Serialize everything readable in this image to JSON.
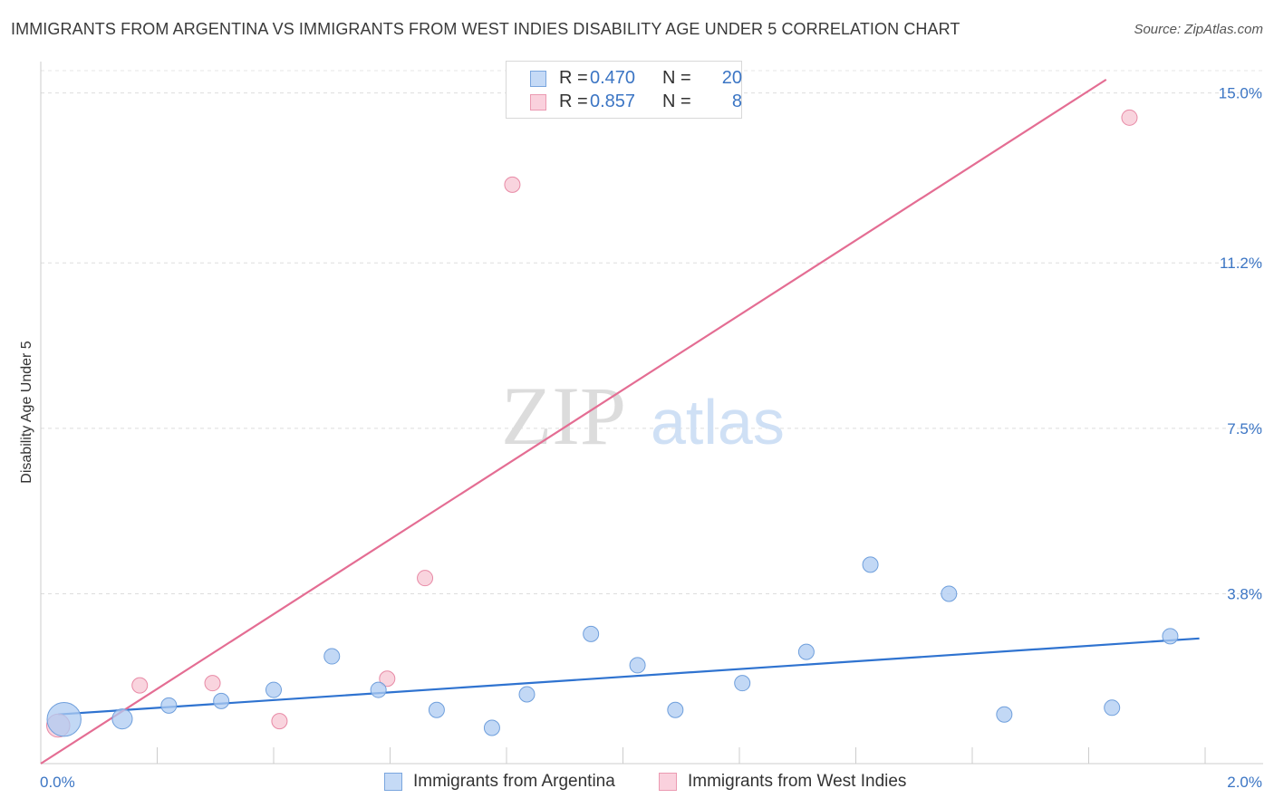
{
  "title": "IMMIGRANTS FROM ARGENTINA VS IMMIGRANTS FROM WEST INDIES DISABILITY AGE UNDER 5 CORRELATION CHART",
  "source": "Source: ZipAtlas.com",
  "watermark": {
    "zip": "ZIP",
    "atlas": "atlas"
  },
  "legend": {
    "argentina": {
      "r_label": "R =",
      "r_value": "0.470",
      "n_label": "N =",
      "n_value": "20"
    },
    "west_indies": {
      "r_label": "R =",
      "r_value": "0.857",
      "n_label": "N =",
      "n_value": "8"
    }
  },
  "chart_data": {
    "type": "scatter",
    "title": "IMMIGRANTS FROM ARGENTINA VS IMMIGRANTS FROM WEST INDIES DISABILITY AGE UNDER 5 CORRELATION CHART",
    "xlabel": "",
    "ylabel": "Disability Age Under 5",
    "xlim": [
      0.0,
      2.0
    ],
    "ylim": [
      0.0,
      15.5
    ],
    "x_tick_labels": [
      "0.0%",
      "2.0%"
    ],
    "y_ticks": [
      3.8,
      7.5,
      11.2,
      15.0
    ],
    "y_tick_labels": [
      "3.8%",
      "7.5%",
      "11.2%",
      "15.0%"
    ],
    "grid": true,
    "legend_position": "bottom",
    "series": [
      {
        "name": "Immigrants from Argentina",
        "color": "#aecbf1",
        "edge": "#6f9fdc",
        "trend_color": "#2f73d0",
        "trend": [
          [
            0.03,
            1.1
          ],
          [
            1.99,
            2.8
          ]
        ],
        "points": [
          {
            "x": 0.04,
            "y": 0.99,
            "s": 2.2
          },
          {
            "x": 0.14,
            "y": 1.0,
            "s": 1.3
          },
          {
            "x": 0.22,
            "y": 1.3,
            "s": 1.0
          },
          {
            "x": 0.31,
            "y": 1.4,
            "s": 1.0
          },
          {
            "x": 0.4,
            "y": 1.65,
            "s": 1.0
          },
          {
            "x": 0.5,
            "y": 2.4,
            "s": 1.0
          },
          {
            "x": 0.58,
            "y": 1.65,
            "s": 1.0
          },
          {
            "x": 0.68,
            "y": 1.2,
            "s": 1.0
          },
          {
            "x": 0.775,
            "y": 0.8,
            "s": 1.0
          },
          {
            "x": 0.835,
            "y": 1.55,
            "s": 1.0
          },
          {
            "x": 0.945,
            "y": 2.9,
            "s": 1.0
          },
          {
            "x": 1.025,
            "y": 2.2,
            "s": 1.0
          },
          {
            "x": 1.09,
            "y": 1.2,
            "s": 1.0
          },
          {
            "x": 1.205,
            "y": 1.8,
            "s": 1.0
          },
          {
            "x": 1.315,
            "y": 2.5,
            "s": 1.0
          },
          {
            "x": 1.425,
            "y": 4.45,
            "s": 1.0
          },
          {
            "x": 1.56,
            "y": 3.8,
            "s": 1.0
          },
          {
            "x": 1.655,
            "y": 1.1,
            "s": 1.0
          },
          {
            "x": 1.84,
            "y": 1.25,
            "s": 1.0
          },
          {
            "x": 1.94,
            "y": 2.85,
            "s": 1.0
          }
        ]
      },
      {
        "name": "Immigrants from West Indies",
        "color": "#f7c5d3",
        "edge": "#e88aa6",
        "trend_color": "#e46d93",
        "trend": [
          [
            0.0,
            0.0
          ],
          [
            1.83,
            15.3
          ]
        ],
        "points": [
          {
            "x": 0.03,
            "y": 0.85,
            "s": 1.5
          },
          {
            "x": 0.17,
            "y": 1.75,
            "s": 1.0
          },
          {
            "x": 0.295,
            "y": 1.8,
            "s": 1.0
          },
          {
            "x": 0.41,
            "y": 0.95,
            "s": 1.0
          },
          {
            "x": 0.595,
            "y": 1.9,
            "s": 1.0
          },
          {
            "x": 0.66,
            "y": 4.15,
            "s": 1.0
          },
          {
            "x": 0.81,
            "y": 12.95,
            "s": 1.0
          },
          {
            "x": 1.87,
            "y": 14.45,
            "s": 1.0
          }
        ]
      }
    ]
  }
}
